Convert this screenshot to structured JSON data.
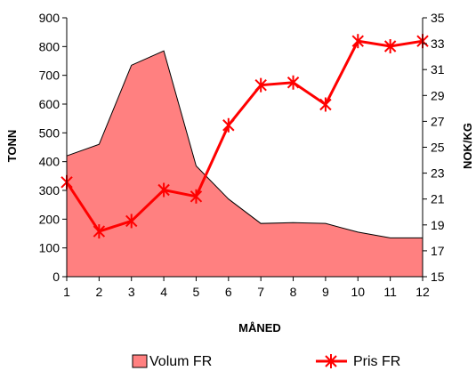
{
  "chart_data": {
    "type": "area+line",
    "x": [
      1,
      2,
      3,
      4,
      5,
      6,
      7,
      8,
      9,
      10,
      11,
      12
    ],
    "xlabel": "MÅNED",
    "ylabel_left": "TONN",
    "ylabel_right": "NOK/KG",
    "ylim_left": [
      0,
      900
    ],
    "ylim_right": [
      15,
      35
    ],
    "yticks_left": [
      0,
      100,
      200,
      300,
      400,
      500,
      600,
      700,
      800,
      900
    ],
    "yticks_right": [
      15,
      17,
      19,
      21,
      23,
      25,
      27,
      29,
      31,
      33,
      35
    ],
    "grid": false,
    "legend_position": "bottom",
    "series": [
      {
        "name": "Volum FR",
        "type": "area",
        "axis": "left",
        "color": "#ff8080",
        "values": [
          420,
          460,
          735,
          785,
          385,
          270,
          185,
          188,
          185,
          155,
          135,
          135
        ]
      },
      {
        "name": "Pris FR",
        "type": "line",
        "axis": "right",
        "marker": "star",
        "color": "#ff0000",
        "values": [
          22.3,
          18.5,
          19.3,
          21.7,
          21.2,
          26.7,
          29.8,
          30.0,
          28.3,
          33.2,
          32.8,
          33.2
        ]
      }
    ]
  }
}
